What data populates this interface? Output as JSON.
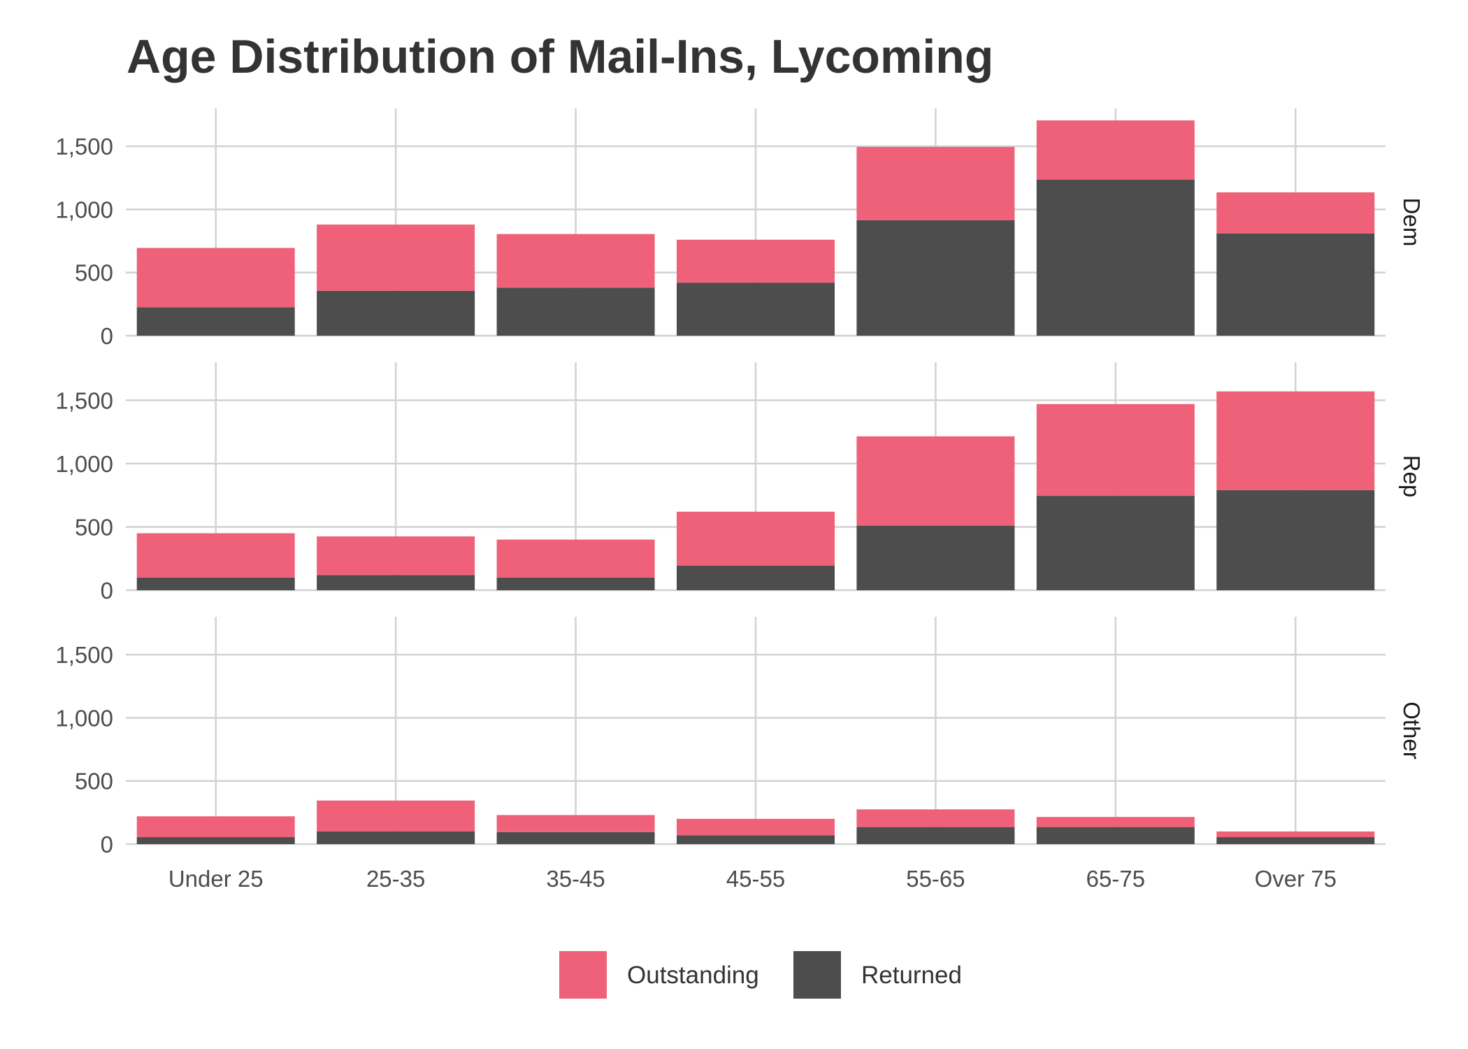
{
  "chart_data": {
    "type": "bar",
    "stacked": true,
    "faceted": true,
    "title": "Age Distribution of Mail-Ins, Lycoming",
    "xlabel": "",
    "ylabel": "",
    "categories": [
      "Under 25",
      "25-35",
      "35-45",
      "45-55",
      "55-65",
      "65-75",
      "Over 75"
    ],
    "ylim": [
      0,
      1800
    ],
    "yticks": [
      0,
      500,
      1000,
      1500
    ],
    "ytick_labels": [
      "0",
      "500",
      "1,000",
      "1,500"
    ],
    "grid": true,
    "legend_position": "bottom",
    "legend": [
      "Outstanding",
      "Returned"
    ],
    "colors": {
      "Outstanding": "#EE6178",
      "Returned": "#4D4D4D"
    },
    "facets": [
      {
        "label": "Dem",
        "series": [
          {
            "name": "Returned",
            "values": [
              225,
              355,
              380,
              420,
              915,
              1235,
              810
            ]
          },
          {
            "name": "Outstanding",
            "values": [
              470,
              525,
              425,
              340,
              580,
              470,
              325
            ]
          }
        ]
      },
      {
        "label": "Rep",
        "series": [
          {
            "name": "Returned",
            "values": [
              100,
              120,
              100,
              195,
              510,
              745,
              790
            ]
          },
          {
            "name": "Outstanding",
            "values": [
              350,
              305,
              300,
              425,
              705,
              725,
              780
            ]
          }
        ]
      },
      {
        "label": "Other",
        "series": [
          {
            "name": "Returned",
            "values": [
              55,
              100,
              95,
              70,
              135,
              135,
              55
            ]
          },
          {
            "name": "Outstanding",
            "values": [
              165,
              245,
              135,
              130,
              140,
              80,
              45
            ]
          }
        ]
      }
    ]
  }
}
